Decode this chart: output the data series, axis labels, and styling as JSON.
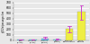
{
  "categories": [
    "RER\n(RATP)",
    "Tramway\n(RATP)",
    "Autobus\n(Keolis)",
    "TGV\n(SNCF)",
    "Voitures\nparticulieres",
    "Trans-\naeriens"
  ],
  "values": [
    5,
    8,
    35,
    14,
    210,
    530
  ],
  "min_vals": [
    3,
    5,
    22,
    8,
    140,
    380
  ],
  "max_vals": [
    9,
    13,
    58,
    22,
    270,
    650
  ],
  "bar_colors": [
    "#55ccee",
    "#55ccee",
    "#55ccee",
    "#55ccee",
    "#eeee44",
    "#eeee44"
  ],
  "error_color": "#cc44cc",
  "ylim": [
    0,
    700
  ],
  "yticks": [
    0,
    100,
    200,
    300,
    400,
    500,
    600,
    700
  ],
  "ylabel": "gCO2e/passager-km",
  "background_color": "#e8e8e8",
  "grid_color": "#ffffff"
}
